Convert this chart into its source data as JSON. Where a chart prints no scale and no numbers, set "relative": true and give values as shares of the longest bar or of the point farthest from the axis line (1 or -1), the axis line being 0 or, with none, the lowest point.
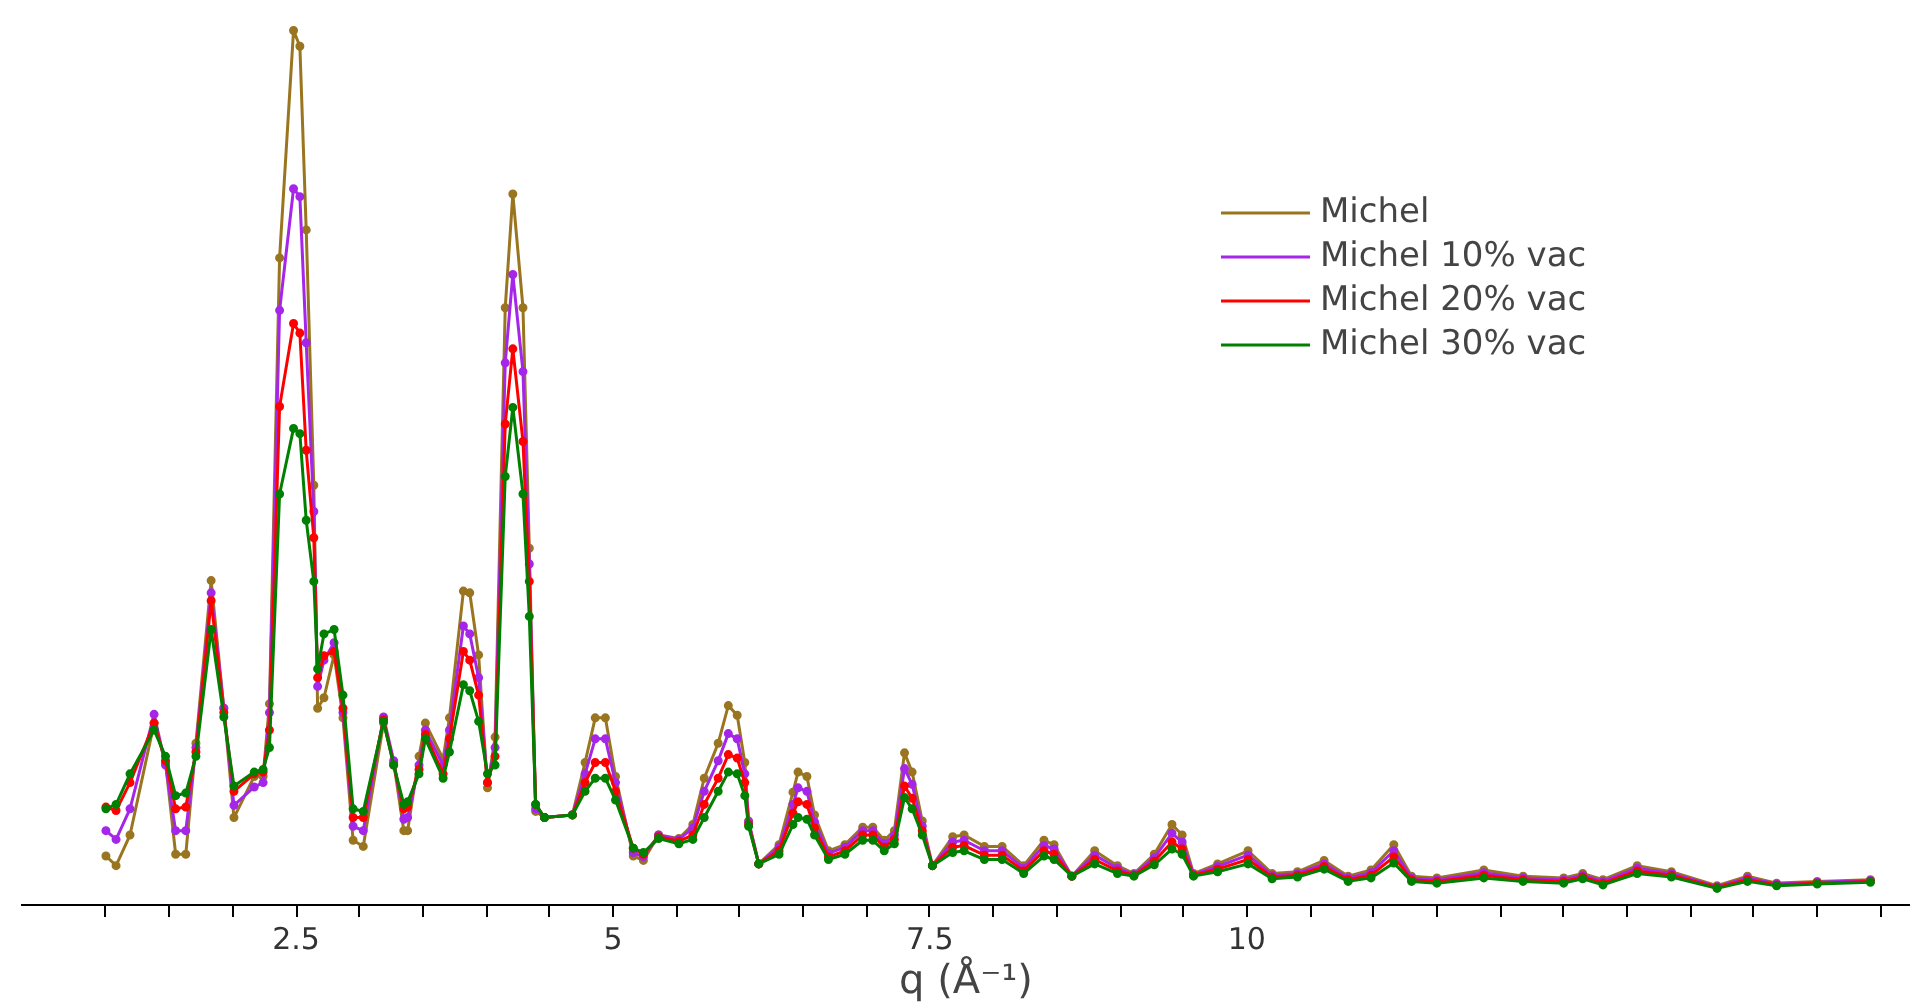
{
  "chart_data": {
    "type": "line",
    "relative": true,
    "xlabel": "q (Å⁻¹)",
    "xlim": [
      0.33,
      15.24
    ],
    "xticks": [
      {
        "value": 1,
        "label": null
      },
      {
        "value": 1.5,
        "label": null
      },
      {
        "value": 2,
        "label": null
      },
      2.5,
      {
        "value": 3,
        "label": null
      },
      {
        "value": 3.5,
        "label": null
      },
      {
        "value": 4,
        "label": null
      },
      {
        "value": 4.5,
        "label": null
      },
      5,
      {
        "value": 5.5,
        "label": null
      },
      {
        "value": 6,
        "label": null
      },
      {
        "value": 6.5,
        "label": null
      },
      {
        "value": 7,
        "label": null
      },
      7.5,
      {
        "value": 8,
        "label": null
      },
      {
        "value": 8.5,
        "label": null
      },
      {
        "value": 9,
        "label": null
      },
      {
        "value": 9.5,
        "label": null
      },
      10,
      {
        "value": 10.5,
        "label": null
      },
      {
        "value": 11,
        "label": null
      },
      {
        "value": 11.5,
        "label": null
      },
      {
        "value": 12,
        "label": null
      },
      {
        "value": 12.5,
        "label": null
      },
      {
        "value": 13,
        "label": null
      },
      {
        "value": 13.5,
        "label": null
      },
      {
        "value": 14,
        "label": null
      },
      {
        "value": 14.5,
        "label": null
      },
      {
        "value": 15,
        "label": null
      }
    ],
    "grid": false,
    "legend": "top right",
    "marker": "circle",
    "line_style": "solid",
    "x": [
      1.0,
      1.08,
      1.19,
      1.38,
      1.47,
      1.55,
      1.63,
      1.71,
      1.83,
      1.93,
      2.01,
      2.17,
      2.24,
      2.29,
      2.37,
      2.48,
      2.53,
      2.58,
      2.64,
      2.67,
      2.72,
      2.8,
      2.87,
      2.95,
      3.03,
      3.19,
      3.27,
      3.35,
      3.38,
      3.47,
      3.52,
      3.66,
      3.71,
      3.82,
      3.87,
      3.94,
      4.01,
      4.07,
      4.15,
      4.21,
      4.29,
      4.34,
      4.39,
      4.46,
      4.68,
      4.78,
      4.86,
      4.94,
      5.02,
      5.16,
      5.24,
      5.36,
      5.52,
      5.63,
      5.72,
      5.83,
      5.91,
      5.98,
      6.04,
      6.07,
      6.15,
      6.31,
      6.42,
      6.46,
      6.53,
      6.59,
      6.7,
      6.83,
      6.97,
      7.05,
      7.14,
      7.22,
      7.3,
      7.36,
      7.44,
      7.52,
      7.68,
      7.77,
      7.93,
      8.07,
      8.24,
      8.4,
      8.48,
      8.62,
      8.8,
      8.98,
      9.11,
      9.27,
      9.41,
      9.49,
      9.58,
      9.77,
      10.01,
      10.2,
      10.4,
      10.61,
      10.8,
      10.98,
      11.16,
      11.3,
      11.5,
      11.87,
      12.18,
      12.5,
      12.65,
      12.81,
      13.08,
      13.35,
      13.71,
      13.95,
      14.18,
      14.5,
      14.92
    ],
    "series": [
      {
        "name": "Michel",
        "color": "#9a7520",
        "values": [
          0.056,
          0.045,
          0.08,
          0.208,
          0.163,
          0.058,
          0.058,
          0.185,
          0.371,
          0.225,
          0.1,
          0.147,
          0.147,
          0.23,
          0.74,
          1.0,
          0.982,
          0.772,
          0.48,
          0.225,
          0.237,
          0.286,
          0.214,
          0.074,
          0.067,
          0.208,
          0.163,
          0.085,
          0.085,
          0.17,
          0.208,
          0.167,
          0.214,
          0.359,
          0.357,
          0.286,
          0.134,
          0.192,
          0.683,
          0.813,
          0.683,
          0.408,
          0.107,
          0.1,
          0.103,
          0.163,
          0.214,
          0.214,
          0.147,
          0.056,
          0.051,
          0.08,
          0.076,
          0.092,
          0.145,
          0.185,
          0.228,
          0.217,
          0.163,
          0.096,
          0.047,
          0.069,
          0.129,
          0.152,
          0.147,
          0.103,
          0.062,
          0.069,
          0.089,
          0.089,
          0.074,
          0.085,
          0.174,
          0.152,
          0.096,
          0.045,
          0.078,
          0.08,
          0.067,
          0.067,
          0.045,
          0.074,
          0.069,
          0.033,
          0.062,
          0.045,
          0.036,
          0.058,
          0.092,
          0.08,
          0.036,
          0.047,
          0.062,
          0.036,
          0.038,
          0.051,
          0.033,
          0.04,
          0.069,
          0.033,
          0.031,
          0.04,
          0.033,
          0.031,
          0.036,
          0.029,
          0.045,
          0.038,
          0.022,
          0.033,
          0.025,
          0.027,
          0.029
        ]
      },
      {
        "name": "Michel 10% vac",
        "color": "#a526e8",
        "values": [
          0.085,
          0.075,
          0.11,
          0.218,
          0.16,
          0.085,
          0.085,
          0.18,
          0.357,
          0.225,
          0.114,
          0.135,
          0.14,
          0.22,
          0.68,
          0.819,
          0.81,
          0.643,
          0.45,
          0.25,
          0.28,
          0.3,
          0.22,
          0.09,
          0.085,
          0.215,
          0.165,
          0.098,
          0.1,
          0.16,
          0.2,
          0.16,
          0.2,
          0.319,
          0.31,
          0.26,
          0.14,
          0.18,
          0.62,
          0.721,
          0.61,
          0.39,
          0.11,
          0.1,
          0.103,
          0.15,
          0.19,
          0.19,
          0.14,
          0.06,
          0.055,
          0.08,
          0.075,
          0.088,
          0.13,
          0.165,
          0.196,
          0.19,
          0.15,
          0.095,
          0.047,
          0.066,
          0.115,
          0.134,
          0.13,
          0.095,
          0.059,
          0.066,
          0.085,
          0.085,
          0.07,
          0.08,
          0.156,
          0.138,
          0.09,
          0.045,
          0.072,
          0.074,
          0.062,
          0.062,
          0.042,
          0.068,
          0.064,
          0.033,
          0.057,
          0.042,
          0.035,
          0.054,
          0.082,
          0.072,
          0.035,
          0.044,
          0.057,
          0.034,
          0.036,
          0.047,
          0.031,
          0.037,
          0.062,
          0.031,
          0.029,
          0.037,
          0.031,
          0.029,
          0.034,
          0.027,
          0.042,
          0.036,
          0.021,
          0.031,
          0.024,
          0.026,
          0.028
        ]
      },
      {
        "name": "Michel 20% vac",
        "color": "#ff0000",
        "values": [
          0.112,
          0.108,
          0.14,
          0.208,
          0.165,
          0.11,
          0.112,
          0.175,
          0.348,
          0.22,
          0.13,
          0.15,
          0.152,
          0.2,
          0.57,
          0.665,
          0.654,
          0.52,
          0.42,
          0.26,
          0.285,
          0.29,
          0.225,
          0.1,
          0.1,
          0.212,
          0.16,
          0.11,
          0.112,
          0.155,
          0.195,
          0.15,
          0.19,
          0.29,
          0.28,
          0.24,
          0.14,
          0.17,
          0.55,
          0.636,
          0.53,
          0.37,
          0.115,
          0.1,
          0.103,
          0.14,
          0.163,
          0.163,
          0.13,
          0.065,
          0.058,
          0.078,
          0.073,
          0.08,
          0.115,
          0.145,
          0.172,
          0.168,
          0.14,
          0.092,
          0.047,
          0.062,
          0.105,
          0.118,
          0.115,
          0.088,
          0.055,
          0.062,
          0.08,
          0.08,
          0.066,
          0.075,
          0.136,
          0.122,
          0.085,
          0.045,
          0.066,
          0.068,
          0.057,
          0.057,
          0.039,
          0.062,
          0.058,
          0.033,
          0.052,
          0.039,
          0.034,
          0.05,
          0.072,
          0.064,
          0.034,
          0.041,
          0.052,
          0.032,
          0.034,
          0.044,
          0.029,
          0.034,
          0.055,
          0.029,
          0.027,
          0.034,
          0.029,
          0.027,
          0.032,
          0.025,
          0.039,
          0.034,
          0.02,
          0.029,
          0.023,
          0.025,
          0.027
        ]
      },
      {
        "name": "Michel 30% vac",
        "color": "#008000",
        "values": [
          0.11,
          0.115,
          0.15,
          0.2,
          0.17,
          0.125,
          0.128,
          0.17,
          0.315,
          0.215,
          0.136,
          0.152,
          0.155,
          0.18,
          0.47,
          0.545,
          0.539,
          0.44,
          0.37,
          0.27,
          0.31,
          0.315,
          0.24,
          0.11,
          0.107,
          0.21,
          0.16,
          0.115,
          0.118,
          0.15,
          0.19,
          0.145,
          0.175,
          0.252,
          0.245,
          0.21,
          0.15,
          0.16,
          0.49,
          0.569,
          0.47,
          0.33,
          0.115,
          0.1,
          0.103,
          0.13,
          0.145,
          0.145,
          0.12,
          0.065,
          0.06,
          0.076,
          0.07,
          0.075,
          0.1,
          0.13,
          0.152,
          0.15,
          0.125,
          0.09,
          0.047,
          0.058,
          0.092,
          0.1,
          0.098,
          0.08,
          0.052,
          0.058,
          0.074,
          0.074,
          0.062,
          0.07,
          0.123,
          0.11,
          0.08,
          0.045,
          0.06,
          0.062,
          0.052,
          0.052,
          0.036,
          0.056,
          0.052,
          0.033,
          0.047,
          0.036,
          0.033,
          0.046,
          0.064,
          0.058,
          0.033,
          0.038,
          0.047,
          0.03,
          0.032,
          0.041,
          0.027,
          0.031,
          0.048,
          0.027,
          0.025,
          0.031,
          0.027,
          0.025,
          0.03,
          0.023,
          0.036,
          0.032,
          0.019,
          0.027,
          0.022,
          0.024,
          0.026
        ]
      }
    ]
  }
}
